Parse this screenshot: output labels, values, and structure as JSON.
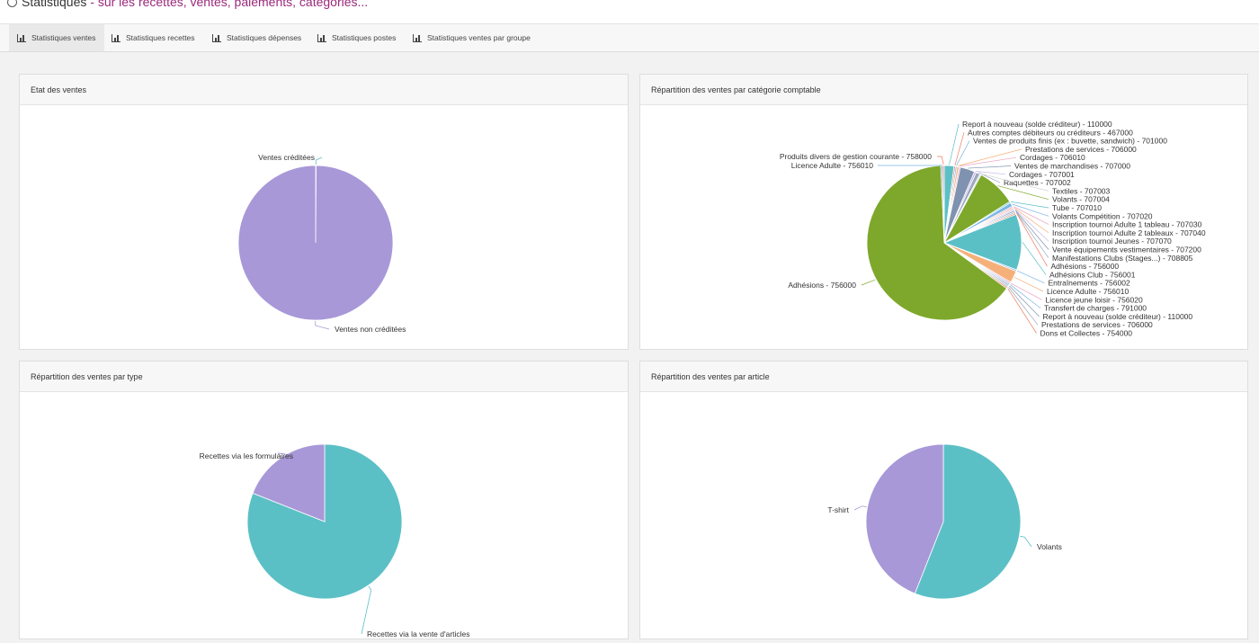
{
  "header": {
    "title": "Statistiques",
    "subtitle": "- sur les recettes, ventes, paiements, catégories..."
  },
  "tabs": [
    {
      "label": "Statistiques ventes",
      "active": true
    },
    {
      "label": "Statistiques recettes",
      "active": false
    },
    {
      "label": "Statistiques dépenses",
      "active": false
    },
    {
      "label": "Statistiques postes",
      "active": false
    },
    {
      "label": "Statistiques ventes par groupe",
      "active": false
    }
  ],
  "panels": {
    "etat": {
      "title": "Etat des ventes"
    },
    "categorie": {
      "title": "Répartition des ventes par catégorie comptable"
    },
    "type": {
      "title": "Répartition des ventes par type"
    },
    "article": {
      "title": "Répartition des ventes par article"
    }
  },
  "chart_data": [
    {
      "type": "pie",
      "title": "Etat des ventes",
      "slices": [
        {
          "label": "Ventes créditées",
          "value": 0.1,
          "color": "#5bc0c6"
        },
        {
          "label": "Ventes non créditées",
          "value": 99.9,
          "color": "#a898d8"
        }
      ]
    },
    {
      "type": "pie",
      "title": "Répartition des ventes par catégorie comptable",
      "slices": [
        {
          "label": "Report à nouveau (solde créditeur) - 110000",
          "value": 2.0,
          "color": "#5bc0c6"
        },
        {
          "label": "Autres comptes débiteurs ou créditeurs - 467000",
          "value": 0.3,
          "color": "#f07a5e"
        },
        {
          "label": "Ventes de produits finis (ex : buvette, sandwich) - 701000",
          "value": 0.3,
          "color": "#7ab5e6"
        },
        {
          "label": "Prestations de services - 706000",
          "value": 0.4,
          "color": "#f5b07a"
        },
        {
          "label": "Cordages - 706010",
          "value": 0.3,
          "color": "#e9a3c0"
        },
        {
          "label": "Ventes de marchandises - 707000",
          "value": 3.0,
          "color": "#7f93b0"
        },
        {
          "label": "Cordages - 707001",
          "value": 0.4,
          "color": "#c7b8e8"
        },
        {
          "label": "Raquettes - 707002",
          "value": 0.8,
          "color": "#9aa8c0"
        },
        {
          "label": "Textiles - 707003",
          "value": 0.3,
          "color": "#d4d4d4"
        },
        {
          "label": "Volants - 707004",
          "value": 8.0,
          "color": "#7ea82b"
        },
        {
          "label": "Tube - 707010",
          "value": 0.3,
          "color": "#5bc0c6"
        },
        {
          "label": "Volants Compétition - 707020",
          "value": 0.8,
          "color": "#7ab5e6"
        },
        {
          "label": "Inscription tournoi Adulte 1 tableau - 707030",
          "value": 0.3,
          "color": "#e9a3c0"
        },
        {
          "label": "Inscription tournoi Adulte 2 tableaux - 707040",
          "value": 0.3,
          "color": "#f5b07a"
        },
        {
          "label": "Inscription tournoi Jeunes - 707070",
          "value": 0.3,
          "color": "#c7b8e8"
        },
        {
          "label": "Vente équipements vestimentaires - 707200",
          "value": 0.3,
          "color": "#7f93b0"
        },
        {
          "label": "Manifestations Clubs (Stages...) - 708805",
          "value": 0.3,
          "color": "#9aa8c0"
        },
        {
          "label": "Adhésions - 756000",
          "value": 0.3,
          "color": "#f07a5e"
        },
        {
          "label": "Adhésions Club - 756001",
          "value": 11.5,
          "color": "#5bc0c6"
        },
        {
          "label": "Entraînements - 756002",
          "value": 0.3,
          "color": "#7ab5e6"
        },
        {
          "label": "Licence Adulte - 756010",
          "value": 2.5,
          "color": "#f5b07a"
        },
        {
          "label": "Licence jeune loisir - 756020",
          "value": 0.3,
          "color": "#e9a3c0"
        },
        {
          "label": "Transfert de charges - 791000",
          "value": 0.3,
          "color": "#7ab5e6"
        },
        {
          "label": "Report à nouveau (solde créditeur) - 110000",
          "value": 0.3,
          "color": "#7f93b0"
        },
        {
          "label": "Prestations de services - 706000",
          "value": 0.3,
          "color": "#9aa8c0"
        },
        {
          "label": "Dons et Collectes - 754000",
          "value": 0.3,
          "color": "#f07a5e"
        },
        {
          "label": "Adhésions - 756000",
          "value": 63.2,
          "color": "#7ea82b"
        },
        {
          "label": "Licence Adulte - 756010",
          "value": 0.4,
          "color": "#7ab5e6"
        },
        {
          "label": "Produits divers de gestion courante - 758000",
          "value": 0.3,
          "color": "#f07a5e"
        }
      ]
    },
    {
      "type": "pie",
      "title": "Répartition des ventes par type",
      "slices": [
        {
          "label": "Recettes via la vente d'articles",
          "value": 81,
          "color": "#5bc0c6"
        },
        {
          "label": "Recettes via les formulaires",
          "value": 19,
          "color": "#a898d8"
        }
      ]
    },
    {
      "type": "pie",
      "title": "Répartition des ventes par article",
      "slices": [
        {
          "label": "Volants",
          "value": 56,
          "color": "#5bc0c6"
        },
        {
          "label": "T-shirt",
          "value": 44,
          "color": "#a898d8"
        }
      ]
    }
  ]
}
